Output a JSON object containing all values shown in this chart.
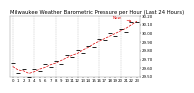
{
  "title": "Milwaukee Weather Barometric Pressure per Hour (Last 24 Hours)",
  "hours": [
    0,
    1,
    2,
    3,
    4,
    5,
    6,
    7,
    8,
    9,
    10,
    11,
    12,
    13,
    14,
    15,
    16,
    17,
    18,
    19,
    20,
    21,
    22,
    23
  ],
  "pressure": [
    29.62,
    29.58,
    29.57,
    29.54,
    29.56,
    29.59,
    29.61,
    29.64,
    29.66,
    29.69,
    29.72,
    29.75,
    29.77,
    29.81,
    29.84,
    29.88,
    29.91,
    29.94,
    29.97,
    30.0,
    30.03,
    30.06,
    30.1,
    30.14
  ],
  "noise": [
    0.04,
    -0.03,
    0.02,
    -0.04,
    0.03,
    -0.02,
    0.04,
    -0.03,
    0.02,
    -0.04,
    0.03,
    -0.02,
    0.04,
    -0.03,
    0.02,
    -0.04,
    0.03,
    -0.02,
    0.04,
    -0.03,
    0.02,
    -0.04,
    0.03,
    -0.01
  ],
  "line_color": "#dd0000",
  "dot_color": "#000000",
  "grid_color": "#bbbbbb",
  "bg_color": "#ffffff",
  "ylim": [
    29.5,
    30.2
  ],
  "ytick_step": 0.1,
  "title_fontsize": 3.8,
  "tick_fontsize": 2.8,
  "legend_fontsize": 3.0
}
